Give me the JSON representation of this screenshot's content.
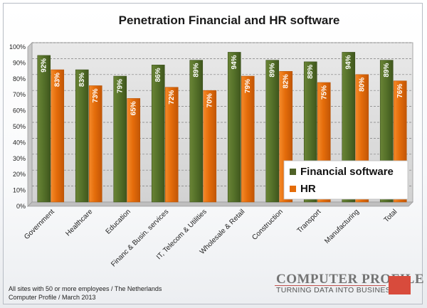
{
  "chart_data": {
    "type": "bar",
    "title": "Penetration Financial and HR software",
    "categories": [
      "Government",
      "Healthcare",
      "Education",
      "Financ & Busin. services",
      "IT, Telecom & Utilities",
      "Wholesale & Retail",
      "Construction",
      "Transport",
      "Manufacturing",
      "Total"
    ],
    "series": [
      {
        "name": "Financial software",
        "values": [
          92,
          83,
          79,
          86,
          89,
          94,
          89,
          88,
          94,
          89
        ],
        "labels": [
          "92%",
          "83%",
          "79%",
          "86%",
          "89%",
          "94%",
          "89%",
          "88%",
          "94%",
          "89%"
        ],
        "color": "#4f6228"
      },
      {
        "name": "HR",
        "values": [
          83,
          73,
          65,
          72,
          70,
          79,
          82,
          75,
          80,
          76
        ],
        "labels": [
          "83%",
          "73%",
          "65%",
          "72%",
          "70%",
          "79%",
          "82%",
          "75%",
          "80%",
          "76%"
        ],
        "color": "#e46c0a"
      }
    ],
    "ylim": [
      0,
      100
    ],
    "yticks": [
      "0%",
      "10%",
      "20%",
      "30%",
      "40%",
      "50%",
      "60%",
      "70%",
      "80%",
      "90%",
      "100%"
    ],
    "grid": true,
    "legend_position": "bottom-right",
    "plot_background": "#d9d9d9"
  },
  "footnotes": {
    "line1": "All sites with 50 or more employees / The Netherlands",
    "line2": "Computer Profile / March 2013"
  },
  "logo": {
    "name": "COMPUTER PROFILE",
    "tagline": "TURNING DATA INTO BUSINESS",
    "accent": "#d84b3c"
  }
}
